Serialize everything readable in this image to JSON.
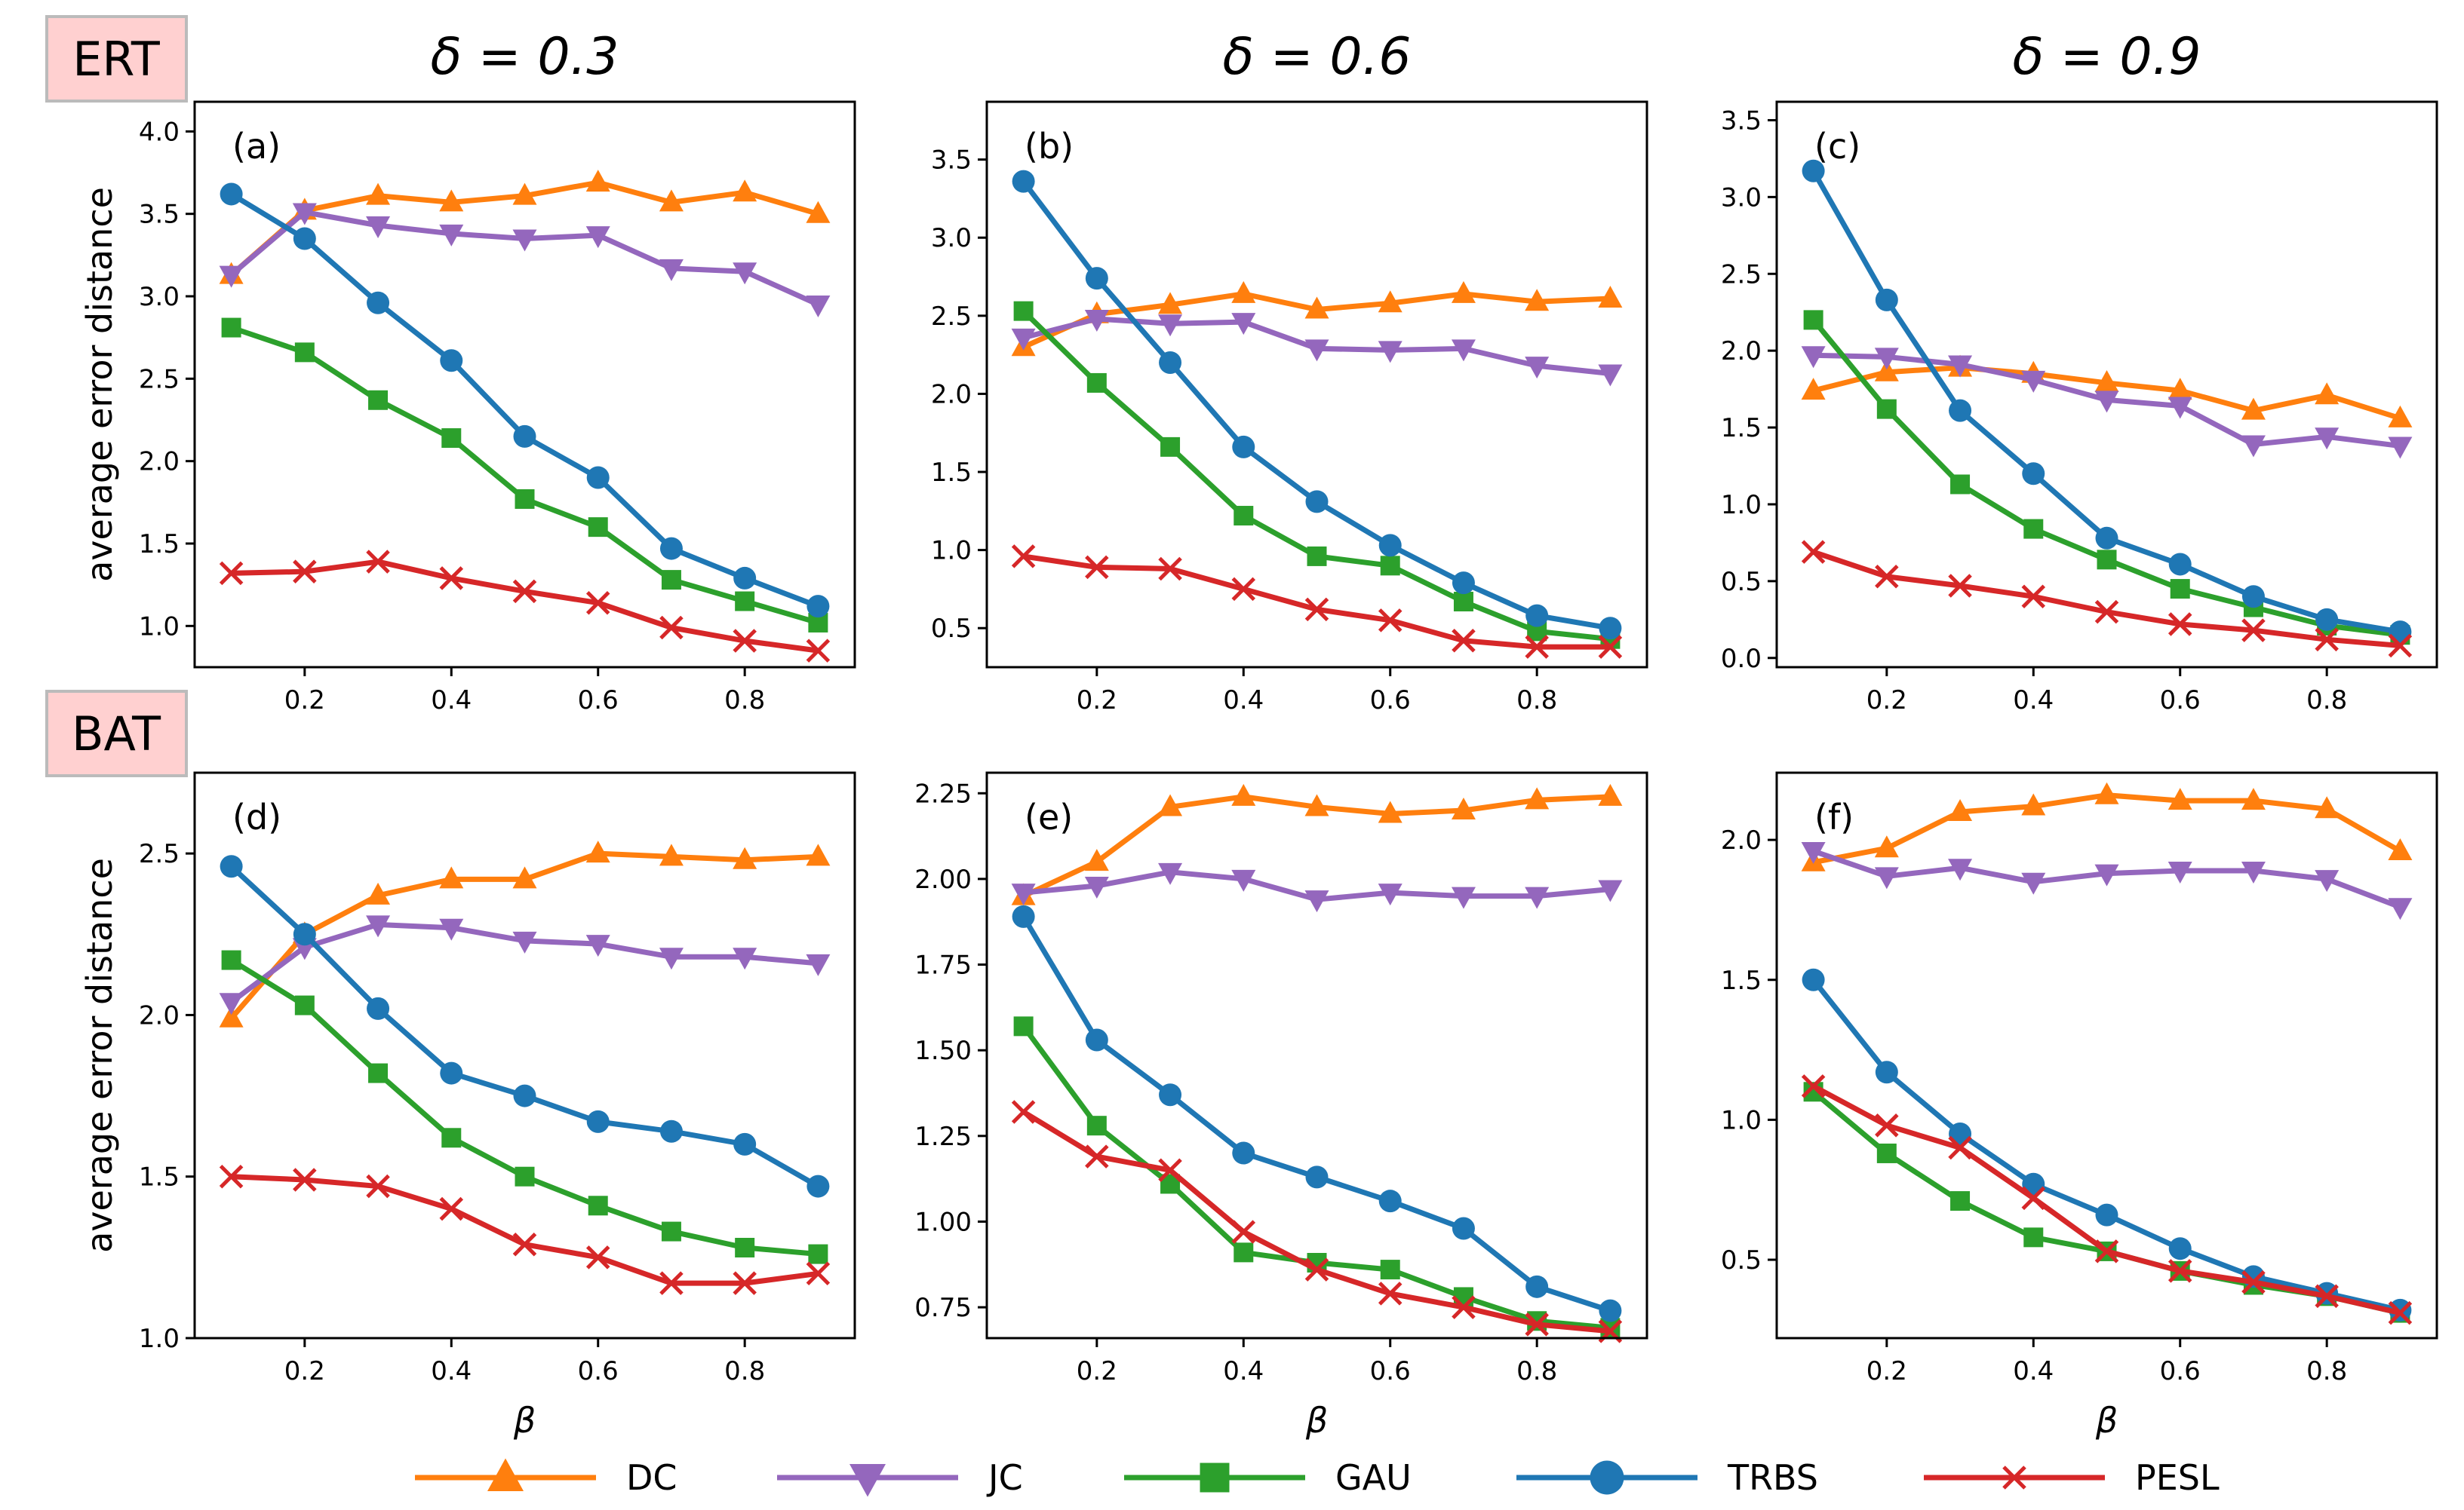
{
  "colors": {
    "DC": "#ff7f0e",
    "JC": "#9467bd",
    "GAU": "#2ca02c",
    "TRBS": "#1f77b4",
    "PESL": "#d62728",
    "row_label_bg": "#ffd0d0",
    "row_label_border": "#bbbbbb"
  },
  "row_labels": [
    "ERT",
    "BAT"
  ],
  "column_titles": [
    "δ = 0.3",
    "δ = 0.6",
    "δ = 0.9"
  ],
  "legend": [
    {
      "name": "DC",
      "marker": "triangle-up"
    },
    {
      "name": "JC",
      "marker": "triangle-down"
    },
    {
      "name": "GAU",
      "marker": "square"
    },
    {
      "name": "TRBS",
      "marker": "circle"
    },
    {
      "name": "PESL",
      "marker": "x"
    }
  ],
  "chart_data": [
    {
      "type": "line",
      "panel": "(a)",
      "row": "ERT",
      "delta": "δ = 0.3",
      "xlabel": "",
      "ylabel": "average error distance",
      "x": [
        0.1,
        0.2,
        0.3,
        0.4,
        0.5,
        0.6,
        0.7,
        0.8,
        0.9
      ],
      "xlim": [
        0.05,
        0.95
      ],
      "xticks": [
        0.2,
        0.4,
        0.6,
        0.8
      ],
      "ylim": [
        0.75,
        4.18
      ],
      "yticks": [
        1.0,
        1.5,
        2.0,
        2.5,
        3.0,
        3.5,
        4.0
      ],
      "series": [
        {
          "name": "DC",
          "values": [
            3.13,
            3.52,
            3.61,
            3.57,
            3.61,
            3.69,
            3.57,
            3.63,
            3.5
          ]
        },
        {
          "name": "JC",
          "values": [
            3.13,
            3.51,
            3.43,
            3.38,
            3.35,
            3.37,
            3.17,
            3.15,
            2.95
          ]
        },
        {
          "name": "GAU",
          "values": [
            2.81,
            2.66,
            2.37,
            2.14,
            1.77,
            1.6,
            1.28,
            1.15,
            1.02
          ]
        },
        {
          "name": "TRBS",
          "values": [
            3.62,
            3.35,
            2.96,
            2.61,
            2.15,
            1.9,
            1.47,
            1.29,
            1.12
          ]
        },
        {
          "name": "PESL",
          "values": [
            1.32,
            1.33,
            1.39,
            1.29,
            1.21,
            1.14,
            0.99,
            0.91,
            0.85
          ]
        }
      ]
    },
    {
      "type": "line",
      "panel": "(b)",
      "row": "ERT",
      "delta": "δ = 0.6",
      "xlabel": "",
      "ylabel": "",
      "x": [
        0.1,
        0.2,
        0.3,
        0.4,
        0.5,
        0.6,
        0.7,
        0.8,
        0.9
      ],
      "xlim": [
        0.05,
        0.95
      ],
      "xticks": [
        0.2,
        0.4,
        0.6,
        0.8
      ],
      "ylim": [
        0.25,
        3.87
      ],
      "yticks": [
        0.5,
        1.0,
        1.5,
        2.0,
        2.5,
        3.0,
        3.5
      ],
      "series": [
        {
          "name": "DC",
          "values": [
            2.3,
            2.51,
            2.57,
            2.64,
            2.54,
            2.58,
            2.64,
            2.59,
            2.61
          ]
        },
        {
          "name": "JC",
          "values": [
            2.36,
            2.48,
            2.45,
            2.46,
            2.29,
            2.28,
            2.29,
            2.18,
            2.13
          ]
        },
        {
          "name": "GAU",
          "values": [
            2.53,
            2.07,
            1.66,
            1.22,
            0.96,
            0.9,
            0.67,
            0.48,
            0.43
          ]
        },
        {
          "name": "TRBS",
          "values": [
            3.36,
            2.74,
            2.2,
            1.66,
            1.31,
            1.03,
            0.79,
            0.58,
            0.5
          ]
        },
        {
          "name": "PESL",
          "values": [
            0.96,
            0.89,
            0.88,
            0.75,
            0.62,
            0.55,
            0.42,
            0.38,
            0.38
          ]
        }
      ]
    },
    {
      "type": "line",
      "panel": "(c)",
      "row": "ERT",
      "delta": "δ = 0.9",
      "xlabel": "",
      "ylabel": "",
      "x": [
        0.1,
        0.2,
        0.3,
        0.4,
        0.5,
        0.6,
        0.7,
        0.8,
        0.9
      ],
      "xlim": [
        0.05,
        0.95
      ],
      "xticks": [
        0.2,
        0.4,
        0.6,
        0.8
      ],
      "ylim": [
        -0.06,
        3.62
      ],
      "yticks": [
        0.0,
        0.5,
        1.0,
        1.5,
        2.0,
        2.5,
        3.0,
        3.5
      ],
      "series": [
        {
          "name": "DC",
          "values": [
            1.74,
            1.86,
            1.89,
            1.85,
            1.79,
            1.74,
            1.61,
            1.71,
            1.56
          ]
        },
        {
          "name": "JC",
          "values": [
            1.97,
            1.96,
            1.91,
            1.81,
            1.68,
            1.64,
            1.39,
            1.44,
            1.38
          ]
        },
        {
          "name": "GAU",
          "values": [
            2.2,
            1.62,
            1.13,
            0.84,
            0.64,
            0.45,
            0.33,
            0.21,
            0.15
          ]
        },
        {
          "name": "TRBS",
          "values": [
            3.17,
            2.33,
            1.61,
            1.2,
            0.78,
            0.61,
            0.4,
            0.25,
            0.17
          ]
        },
        {
          "name": "PESL",
          "values": [
            0.69,
            0.53,
            0.47,
            0.4,
            0.3,
            0.22,
            0.18,
            0.12,
            0.08
          ]
        }
      ]
    },
    {
      "type": "line",
      "panel": "(d)",
      "row": "BAT",
      "delta": "δ = 0.3",
      "xlabel": "β",
      "ylabel": "average error distance",
      "x": [
        0.1,
        0.2,
        0.3,
        0.4,
        0.5,
        0.6,
        0.7,
        0.8,
        0.9
      ],
      "xlim": [
        0.05,
        0.95
      ],
      "xticks": [
        0.2,
        0.4,
        0.6,
        0.8
      ],
      "ylim": [
        1.0,
        2.75
      ],
      "yticks": [
        1.0,
        1.5,
        2.0,
        2.5
      ],
      "series": [
        {
          "name": "DC",
          "values": [
            1.99,
            2.25,
            2.37,
            2.42,
            2.42,
            2.5,
            2.49,
            2.48,
            2.49
          ]
        },
        {
          "name": "JC",
          "values": [
            2.04,
            2.21,
            2.28,
            2.27,
            2.23,
            2.22,
            2.18,
            2.18,
            2.16
          ]
        },
        {
          "name": "GAU",
          "values": [
            2.17,
            2.03,
            1.82,
            1.62,
            1.5,
            1.41,
            1.33,
            1.28,
            1.26
          ]
        },
        {
          "name": "TRBS",
          "values": [
            2.46,
            2.25,
            2.02,
            1.82,
            1.75,
            1.67,
            1.64,
            1.6,
            1.47
          ]
        },
        {
          "name": "PESL",
          "values": [
            1.5,
            1.49,
            1.47,
            1.4,
            1.29,
            1.25,
            1.17,
            1.17,
            1.2
          ]
        }
      ]
    },
    {
      "type": "line",
      "panel": "(e)",
      "row": "BAT",
      "delta": "δ = 0.6",
      "xlabel": "β",
      "ylabel": "",
      "x": [
        0.1,
        0.2,
        0.3,
        0.4,
        0.5,
        0.6,
        0.7,
        0.8,
        0.9
      ],
      "xlim": [
        0.05,
        0.95
      ],
      "xticks": [
        0.2,
        0.4,
        0.6,
        0.8
      ],
      "ylim": [
        0.66,
        2.31
      ],
      "yticks": [
        0.75,
        1.0,
        1.25,
        1.5,
        1.75,
        2.0,
        2.25
      ],
      "series": [
        {
          "name": "DC",
          "values": [
            1.95,
            2.05,
            2.21,
            2.24,
            2.21,
            2.19,
            2.2,
            2.23,
            2.24
          ]
        },
        {
          "name": "JC",
          "values": [
            1.96,
            1.98,
            2.02,
            2.0,
            1.94,
            1.96,
            1.95,
            1.95,
            1.97
          ]
        },
        {
          "name": "GAU",
          "values": [
            1.57,
            1.28,
            1.11,
            0.91,
            0.88,
            0.86,
            0.78,
            0.71,
            0.69
          ]
        },
        {
          "name": "TRBS",
          "values": [
            1.89,
            1.53,
            1.37,
            1.2,
            1.13,
            1.06,
            0.98,
            0.81,
            0.74
          ]
        },
        {
          "name": "PESL",
          "values": [
            1.32,
            1.19,
            1.15,
            0.97,
            0.86,
            0.79,
            0.75,
            0.7,
            0.68
          ]
        }
      ]
    },
    {
      "type": "line",
      "panel": "(f)",
      "row": "BAT",
      "delta": "δ = 0.9",
      "xlabel": "β",
      "ylabel": "",
      "x": [
        0.1,
        0.2,
        0.3,
        0.4,
        0.5,
        0.6,
        0.7,
        0.8,
        0.9
      ],
      "xlim": [
        0.05,
        0.95
      ],
      "xticks": [
        0.2,
        0.4,
        0.6,
        0.8
      ],
      "ylim": [
        0.22,
        2.24
      ],
      "yticks": [
        0.5,
        1.0,
        1.5,
        2.0
      ],
      "series": [
        {
          "name": "DC",
          "values": [
            1.92,
            1.97,
            2.1,
            2.12,
            2.16,
            2.14,
            2.14,
            2.11,
            1.96
          ]
        },
        {
          "name": "JC",
          "values": [
            1.96,
            1.87,
            1.9,
            1.85,
            1.88,
            1.89,
            1.89,
            1.86,
            1.76
          ]
        },
        {
          "name": "GAU",
          "values": [
            1.1,
            0.88,
            0.71,
            0.58,
            0.53,
            0.46,
            0.41,
            0.37,
            0.31
          ]
        },
        {
          "name": "TRBS",
          "values": [
            1.5,
            1.17,
            0.95,
            0.77,
            0.66,
            0.54,
            0.44,
            0.38,
            0.32
          ]
        },
        {
          "name": "PESL",
          "values": [
            1.12,
            0.98,
            0.9,
            0.72,
            0.53,
            0.46,
            0.42,
            0.37,
            0.31
          ]
        }
      ]
    }
  ]
}
